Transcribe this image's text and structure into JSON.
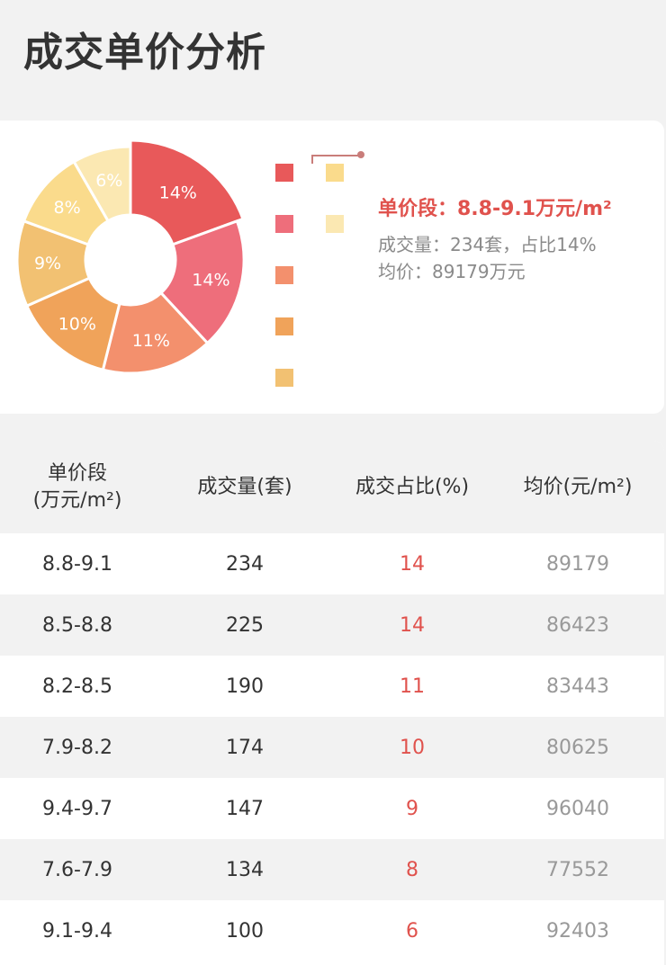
{
  "page": {
    "title": "成交单价分析"
  },
  "tooltip": {
    "title": "单价段：8.8-9.1万元/m²",
    "line1": "成交量：234套，占比14%",
    "line2": "均价：89179万元"
  },
  "table": {
    "headers": [
      "单价段\n(万元/m²)",
      "成交量(套)",
      "成交占比(%)",
      "均价(元/m²)"
    ],
    "rows": [
      [
        "8.8-9.1",
        "234",
        "14",
        "89179"
      ],
      [
        "8.5-8.8",
        "225",
        "14",
        "86423"
      ],
      [
        "8.2-8.5",
        "190",
        "11",
        "83443"
      ],
      [
        "7.9-8.2",
        "174",
        "10",
        "80625"
      ],
      [
        "9.4-9.7",
        "147",
        "9",
        "96040"
      ],
      [
        "7.6-7.9",
        "134",
        "8",
        "77552"
      ],
      [
        "9.1-9.4",
        "100",
        "6",
        "92403"
      ]
    ]
  },
  "chart_data": {
    "type": "pie",
    "title": "",
    "categories": [
      "8.8-9.1",
      "8.5-8.8",
      "8.2-8.5",
      "7.9-8.2",
      "9.4-9.7",
      "7.6-7.9",
      "9.1-9.4"
    ],
    "values": [
      234,
      225,
      190,
      174,
      147,
      134,
      100
    ],
    "labels": [
      "14%",
      "14%",
      "11%",
      "10%",
      "9%",
      "8%",
      "6%"
    ],
    "colors": [
      "#e8595a",
      "#ee6e7b",
      "#f3906d",
      "#f0a35a",
      "#f2c172",
      "#fadb8c",
      "#fbe8b2"
    ],
    "highlight_index": 0,
    "legend_position": "right"
  }
}
